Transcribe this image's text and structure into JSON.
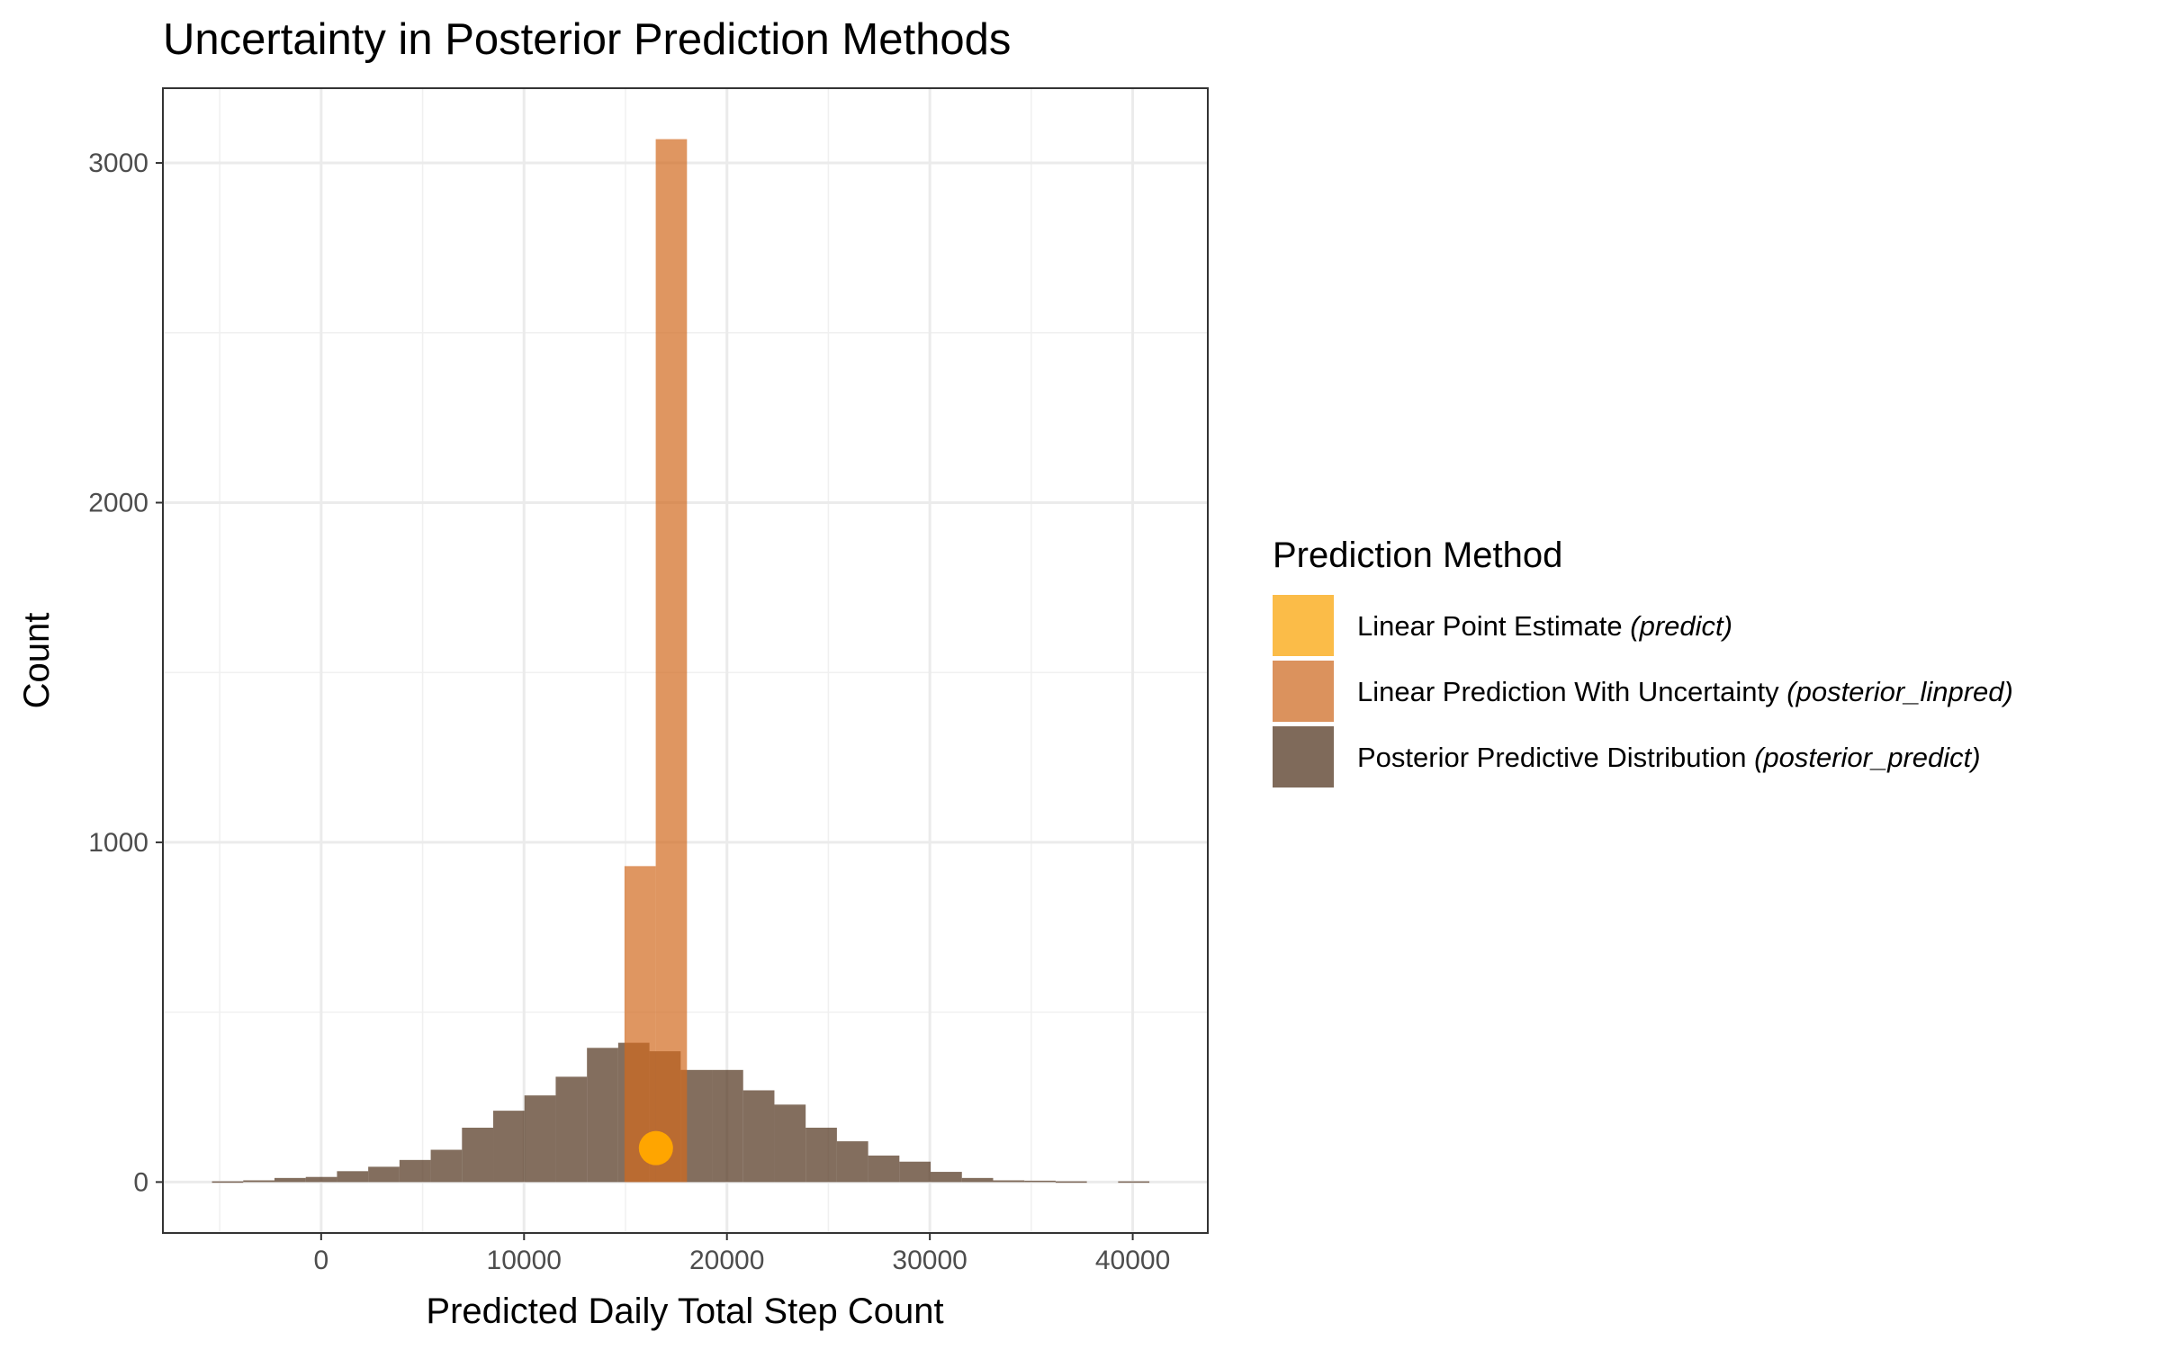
{
  "chart_data": {
    "type": "bar",
    "title": "Uncertainty in Posterior Prediction Methods",
    "xlabel": "Predicted Daily Total Step Count",
    "ylabel": "Count",
    "xlim": [
      -7800,
      43700
    ],
    "ylim": [
      -150,
      3220
    ],
    "x_ticks": [
      0,
      10000,
      20000,
      30000,
      40000
    ],
    "x_tick_labels": [
      "0",
      "10000",
      "20000",
      "30000",
      "40000"
    ],
    "y_ticks": [
      0,
      1000,
      2000,
      3000
    ],
    "y_tick_labels": [
      "0",
      "1000",
      "2000",
      "3000"
    ],
    "x_minor_ticks": [
      -5000,
      5000,
      15000,
      25000,
      35000
    ],
    "y_minor_ticks": [
      500,
      1500,
      2500
    ],
    "grid": true,
    "legend_position": "right",
    "legend_title": "Prediction Method",
    "series": [
      {
        "name": "Linear Point Estimate",
        "name_suffix": "(predict)",
        "kind": "point",
        "color": "#FFA500",
        "points": [
          {
            "x": 16500,
            "y": 100
          }
        ]
      },
      {
        "name": "Linear Prediction With Uncertainty",
        "name_suffix": "(posterior_linpred)",
        "kind": "histogram",
        "color": "#D2691E",
        "bin_width": 1540,
        "bins": [
          {
            "x0": 14950,
            "x1": 16490,
            "count": 930
          },
          {
            "x0": 16490,
            "x1": 18030,
            "count": 3070
          }
        ]
      },
      {
        "name": "Posterior Predictive Distribution",
        "name_suffix": "(posterior_predict)",
        "kind": "histogram",
        "color": "#4E3019",
        "bin_width": 1540,
        "bins": [
          {
            "x0": -5380,
            "x1": -3840,
            "count": 2
          },
          {
            "x0": -3840,
            "x1": -2300,
            "count": 5
          },
          {
            "x0": -2300,
            "x1": -760,
            "count": 12
          },
          {
            "x0": -760,
            "x1": 780,
            "count": 15
          },
          {
            "x0": 780,
            "x1": 2320,
            "count": 32
          },
          {
            "x0": 2320,
            "x1": 3860,
            "count": 45
          },
          {
            "x0": 3860,
            "x1": 5400,
            "count": 65
          },
          {
            "x0": 5400,
            "x1": 6940,
            "count": 95
          },
          {
            "x0": 6940,
            "x1": 8480,
            "count": 160
          },
          {
            "x0": 8480,
            "x1": 10020,
            "count": 210
          },
          {
            "x0": 10020,
            "x1": 11560,
            "count": 255
          },
          {
            "x0": 11560,
            "x1": 13100,
            "count": 310
          },
          {
            "x0": 13100,
            "x1": 14640,
            "count": 395
          },
          {
            "x0": 14640,
            "x1": 16180,
            "count": 410
          },
          {
            "x0": 16180,
            "x1": 17720,
            "count": 385
          },
          {
            "x0": 17720,
            "x1": 19260,
            "count": 330
          },
          {
            "x0": 19260,
            "x1": 20800,
            "count": 330
          },
          {
            "x0": 20800,
            "x1": 22340,
            "count": 270
          },
          {
            "x0": 22340,
            "x1": 23880,
            "count": 228
          },
          {
            "x0": 23880,
            "x1": 25420,
            "count": 160
          },
          {
            "x0": 25420,
            "x1": 26960,
            "count": 120
          },
          {
            "x0": 26960,
            "x1": 28500,
            "count": 78
          },
          {
            "x0": 28500,
            "x1": 30040,
            "count": 60
          },
          {
            "x0": 30040,
            "x1": 31580,
            "count": 30
          },
          {
            "x0": 31580,
            "x1": 33120,
            "count": 12
          },
          {
            "x0": 33120,
            "x1": 34660,
            "count": 5
          },
          {
            "x0": 34660,
            "x1": 36200,
            "count": 4
          },
          {
            "x0": 36200,
            "x1": 37740,
            "count": 2
          },
          {
            "x0": 37740,
            "x1": 39280,
            "count": 0
          },
          {
            "x0": 39280,
            "x1": 40820,
            "count": 2
          }
        ]
      }
    ]
  }
}
